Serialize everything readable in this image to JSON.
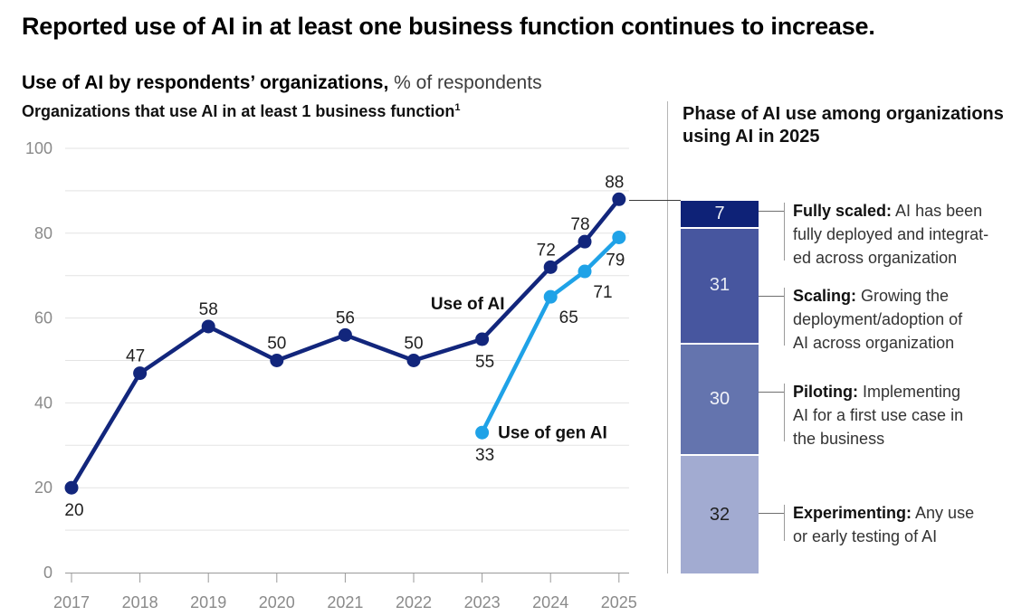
{
  "header": {
    "title": "Reported use of AI in at least one business function continues to increase.",
    "subtitle_bold": "Use of AI by respondents’ organizations,",
    "subtitle_rest": " % of respondents"
  },
  "chart_data": {
    "type": "line",
    "title": "Organizations that use AI in at least 1 business function",
    "title_footnote_marker": "1",
    "xlabel": "",
    "ylabel": "% of respondents",
    "ylim": [
      0,
      100
    ],
    "grid_step": 10,
    "grid_on": true,
    "yticks_labeled": [
      0,
      20,
      40,
      60,
      80,
      100
    ],
    "x_ticks": [
      2017,
      2018,
      2019,
      2020,
      2021,
      2022,
      2023,
      2024,
      2025
    ],
    "series": [
      {
        "name": "Use of AI",
        "color": "#12267c",
        "points": [
          {
            "x": 2017,
            "v": 20,
            "lp": "below"
          },
          {
            "x": 2018,
            "v": 47,
            "lp": "above-left"
          },
          {
            "x": 2019,
            "v": 58,
            "lp": "above"
          },
          {
            "x": 2020,
            "v": 50,
            "lp": "above"
          },
          {
            "x": 2021,
            "v": 56,
            "lp": "above"
          },
          {
            "x": 2022,
            "v": 50,
            "lp": "above"
          },
          {
            "x": 2023,
            "v": 55,
            "lp": "below"
          },
          {
            "x": 2024,
            "v": 72,
            "lp": "above-left"
          },
          {
            "x": 2024.5,
            "v": 78,
            "lp": "above-left"
          },
          {
            "x": 2025,
            "v": 88,
            "lp": "above-left"
          }
        ]
      },
      {
        "name": "Use of gen AI",
        "color": "#1fa2e7",
        "points": [
          {
            "x": 2023,
            "v": 33,
            "lp": "below"
          },
          {
            "x": 2024,
            "v": 65,
            "lp": "below-right"
          },
          {
            "x": 2024.5,
            "v": 71,
            "lp": "below-right"
          },
          {
            "x": 2025,
            "v": 79,
            "lp": "below-left"
          }
        ]
      }
    ],
    "annotations": [
      {
        "text": "Use of AI",
        "x": 2022.79,
        "y": 63.5
      },
      {
        "text": "Use of gen AI",
        "x": 2024.03,
        "y": 33.2
      }
    ],
    "legend_position": "inline-annotations"
  },
  "phase_panel": {
    "title": "Phase of AI use among organizations\nusing AI in 2025",
    "phases": [
      {
        "value": 7,
        "color": "#0e2277",
        "value_color": "#eef0f6",
        "term": "Fully scaled:",
        "desc": " AI has been\nfully deployed and integrat-\ned across organization"
      },
      {
        "value": 31,
        "color": "#47569f",
        "value_color": "#e8ebf4",
        "term": "Scaling:",
        "desc": " Growing the\ndeployment/adoption of\nAI across organization"
      },
      {
        "value": 30,
        "color": "#6474ae",
        "value_color": "#f2f3f9",
        "term": "Piloting:",
        "desc": " Implementing\nAI for a first use case in\nthe business"
      },
      {
        "value": 32,
        "color": "#a2abd1",
        "value_color": "#1f1f1f",
        "term": "Experimenting:",
        "desc": " Any use\nor early testing of AI"
      }
    ]
  }
}
